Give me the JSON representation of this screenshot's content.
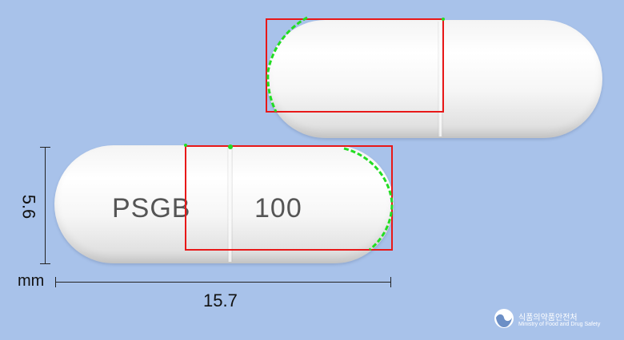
{
  "image": {
    "imprint_front": "PSGB",
    "imprint_back": "100",
    "dimension_height": "5.6",
    "dimension_unit": "mm",
    "dimension_length": "15.7",
    "logo_korean": "식품의약품안전처",
    "logo_english": "Ministry of Food and Drug Safety",
    "colors": {
      "background": "#a8c2ea",
      "capsule": "#ffffff",
      "annotation_box": "#e81818",
      "edge_highlight": "#22dd22"
    }
  }
}
